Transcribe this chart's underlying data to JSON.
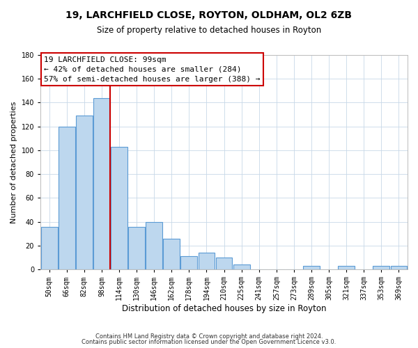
{
  "title": "19, LARCHFIELD CLOSE, ROYTON, OLDHAM, OL2 6ZB",
  "subtitle": "Size of property relative to detached houses in Royton",
  "xlabel": "Distribution of detached houses by size in Royton",
  "ylabel": "Number of detached properties",
  "bar_labels": [
    "50sqm",
    "66sqm",
    "82sqm",
    "98sqm",
    "114sqm",
    "130sqm",
    "146sqm",
    "162sqm",
    "178sqm",
    "194sqm",
    "210sqm",
    "225sqm",
    "241sqm",
    "257sqm",
    "273sqm",
    "289sqm",
    "305sqm",
    "321sqm",
    "337sqm",
    "353sqm",
    "369sqm"
  ],
  "bar_values": [
    36,
    120,
    129,
    144,
    103,
    36,
    40,
    26,
    11,
    14,
    10,
    4,
    0,
    0,
    0,
    3,
    0,
    3,
    0,
    3,
    3
  ],
  "bar_color": "#bdd7ee",
  "bar_edgecolor": "#5b9bd5",
  "property_line_color": "#cc0000",
  "ylim": [
    0,
    180
  ],
  "yticks": [
    0,
    20,
    40,
    60,
    80,
    100,
    120,
    140,
    160,
    180
  ],
  "annotation_title": "19 LARCHFIELD CLOSE: 99sqm",
  "annotation_line1": "← 42% of detached houses are smaller (284)",
  "annotation_line2": "57% of semi-detached houses are larger (388) →",
  "footer1": "Contains HM Land Registry data © Crown copyright and database right 2024.",
  "footer2": "Contains public sector information licensed under the Open Government Licence v3.0.",
  "title_fontsize": 10,
  "subtitle_fontsize": 8.5,
  "xlabel_fontsize": 8.5,
  "ylabel_fontsize": 8,
  "tick_fontsize": 7,
  "annotation_fontsize": 8,
  "footer_fontsize": 6,
  "background_color": "#ffffff",
  "grid_color": "#c8d8e8"
}
